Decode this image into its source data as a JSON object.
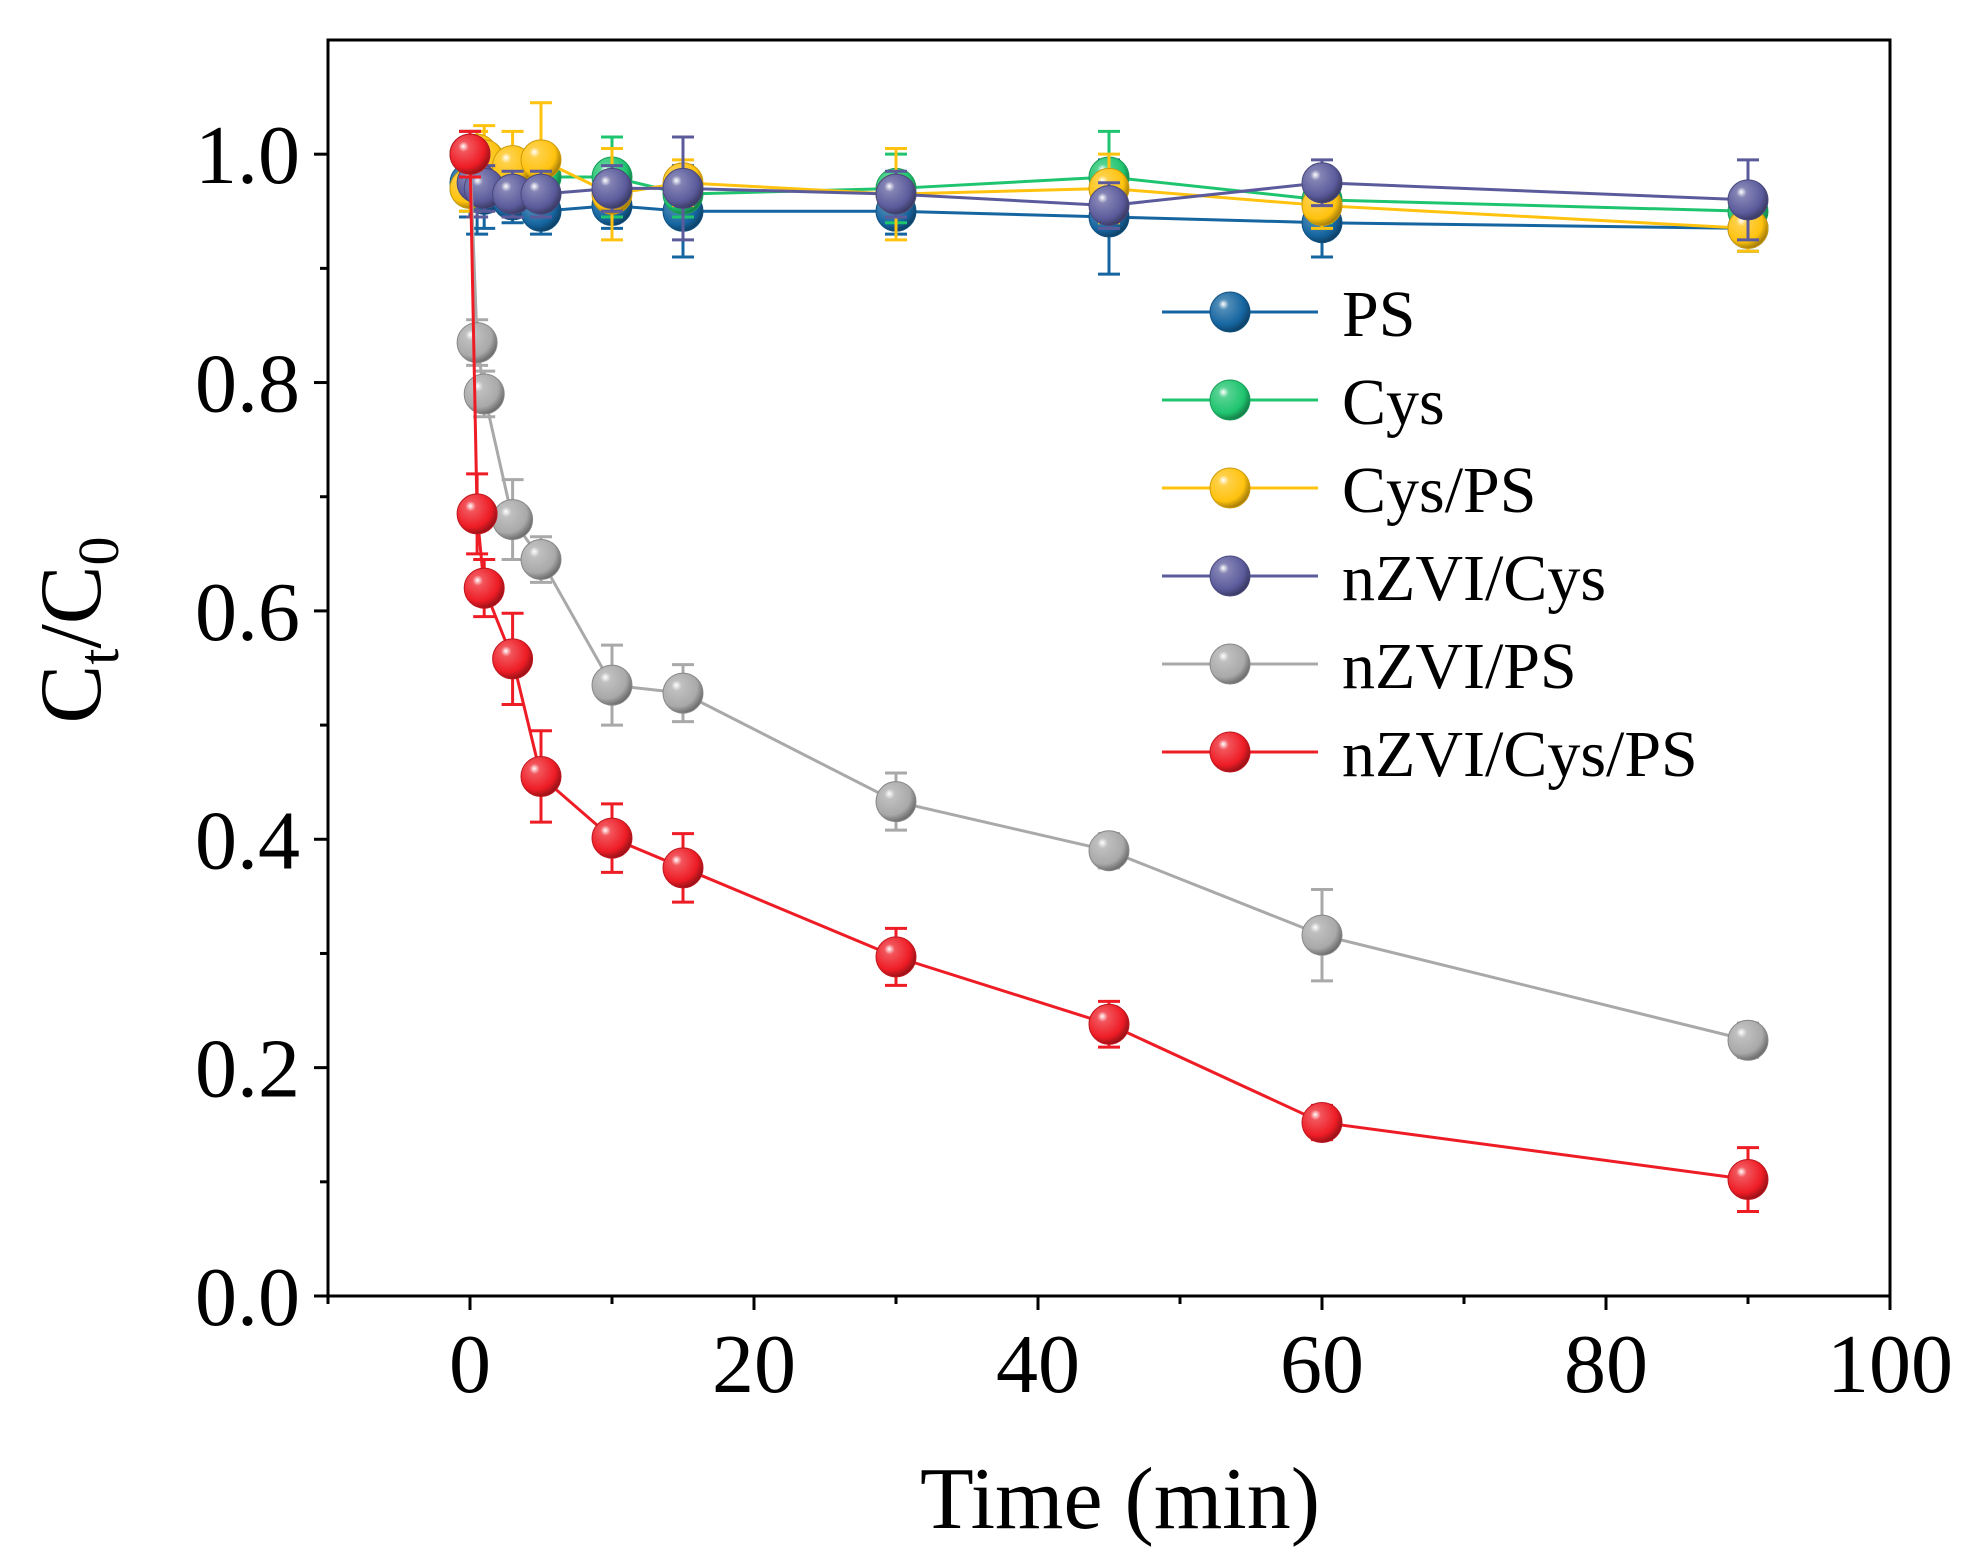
{
  "chart_data": {
    "type": "line",
    "xlabel": "Time (min)",
    "ylabel_main": "C",
    "ylabel_sub_t": "t",
    "ylabel_slash": "/",
    "ylabel_sub_0": "0",
    "xlim": [
      -10,
      100
    ],
    "ylim": [
      0.0,
      1.1
    ],
    "xticks": [
      0,
      20,
      40,
      60,
      80,
      100
    ],
    "xtick_labels": [
      "0",
      "20",
      "40",
      "60",
      "80",
      "100"
    ],
    "yticks": [
      0.0,
      0.2,
      0.4,
      0.6,
      0.8,
      1.0
    ],
    "ytick_labels": [
      "0.0",
      "0.2",
      "0.4",
      "0.6",
      "0.8",
      "1.0"
    ],
    "grid": false,
    "legend_position": "right-middle",
    "x": [
      0,
      0.5,
      1,
      3,
      5,
      10,
      15,
      30,
      45,
      60,
      90
    ],
    "series": [
      {
        "name": "PS",
        "color": "#1565a0",
        "values": [
          0.975,
          0.97,
          0.965,
          0.96,
          0.95,
          0.955,
          0.95,
          0.95,
          0.945,
          0.94,
          0.935
        ],
        "errors": [
          0.03,
          0.04,
          0.03,
          0.02,
          0.02,
          0.02,
          0.04,
          0.02,
          0.05,
          0.03,
          0.02
        ]
      },
      {
        "name": "Cys",
        "color": "#1fc46f",
        "values": [
          0.97,
          0.98,
          0.985,
          0.975,
          0.98,
          0.98,
          0.965,
          0.97,
          0.98,
          0.96,
          0.95
        ],
        "errors": [
          0.02,
          0.02,
          0.02,
          0.02,
          0.02,
          0.035,
          0.02,
          0.03,
          0.04,
          0.02,
          0.02
        ]
      },
      {
        "name": "Cys/PS",
        "color": "#ffc20e",
        "values": [
          0.97,
          1.0,
          0.995,
          0.99,
          0.995,
          0.965,
          0.975,
          0.965,
          0.97,
          0.955,
          0.935
        ],
        "errors": [
          0.02,
          0.02,
          0.03,
          0.03,
          0.05,
          0.04,
          0.02,
          0.04,
          0.03,
          0.02,
          0.02
        ]
      },
      {
        "name": "nZVI/Cys",
        "color": "#5b5b9c",
        "values": [
          1.0,
          0.975,
          0.97,
          0.965,
          0.965,
          0.97,
          0.97,
          0.965,
          0.955,
          0.975,
          0.96
        ],
        "errors": [
          0.02,
          0.03,
          0.02,
          0.02,
          0.02,
          0.02,
          0.045,
          0.02,
          0.02,
          0.02,
          0.035
        ]
      },
      {
        "name": "nZVI/PS",
        "color": "#a9a9a9",
        "values": [
          1.0,
          0.835,
          0.79,
          0.68,
          0.645,
          0.535,
          0.528,
          0.433,
          0.39,
          0.316,
          0.224
        ],
        "errors": [
          0.02,
          0.02,
          0.02,
          0.035,
          0.02,
          0.035,
          0.025,
          0.025,
          0.015,
          0.04,
          0.015
        ]
      },
      {
        "name": "nZVI/Cys/PS",
        "color": "#ee1c25",
        "values": [
          1.0,
          0.685,
          0.62,
          0.558,
          0.455,
          0.401,
          0.375,
          0.297,
          0.238,
          0.152,
          0.102
        ],
        "errors": [
          0.02,
          0.035,
          0.025,
          0.04,
          0.04,
          0.03,
          0.03,
          0.025,
          0.02,
          0.015,
          0.028
        ]
      }
    ]
  }
}
